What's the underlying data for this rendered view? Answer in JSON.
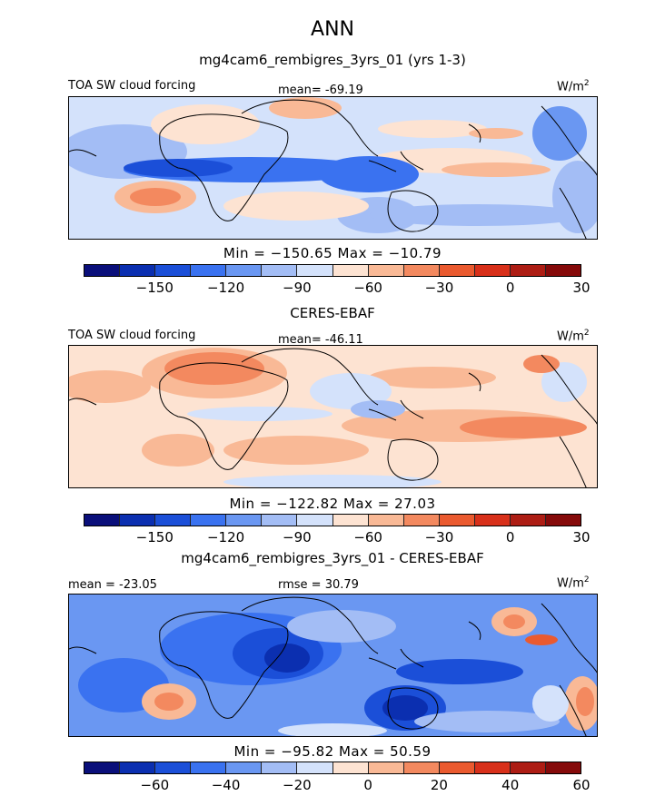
{
  "season": "ANN",
  "colormap": [
    "#0a0f7a",
    "#0b2fb0",
    "#1b4fd8",
    "#3a72f0",
    "#6a97f2",
    "#a3bdf5",
    "#d4e2fb",
    "#fde3d2",
    "#f9b996",
    "#f3895f",
    "#ea5a2f",
    "#d8301a",
    "#ad1d14",
    "#850a0a"
  ],
  "coast_color": "#000000",
  "panels": [
    {
      "title": "mg4cam6_rembigres_3yrs_01 (yrs 1-3)",
      "left_label": "TOA SW cloud forcing",
      "center_label": "mean= -69.19",
      "units": "W/m",
      "units_sup": "2",
      "stats": "Min = −150.65 Max = −10.79",
      "cbar_ticks": [
        "−150",
        "−120",
        "−90",
        "−60",
        "−30",
        "0",
        "30"
      ]
    },
    {
      "title": "CERES-EBAF",
      "left_label": "TOA SW cloud forcing",
      "center_label": "mean= -46.11",
      "units": "W/m",
      "units_sup": "2",
      "stats": "Min = −122.82 Max = 27.03",
      "cbar_ticks": [
        "−150",
        "−120",
        "−90",
        "−60",
        "−30",
        "0",
        "30"
      ]
    },
    {
      "title": "mg4cam6_rembigres_3yrs_01 - CERES-EBAF",
      "left_label": "mean = -23.05",
      "center_label": "rmse = 30.79",
      "units": "W/m",
      "units_sup": "2",
      "stats": "Min = −95.82 Max = 50.59",
      "cbar_ticks": [
        "−60",
        "−40",
        "−20",
        "0",
        "20",
        "40",
        "60"
      ]
    }
  ]
}
